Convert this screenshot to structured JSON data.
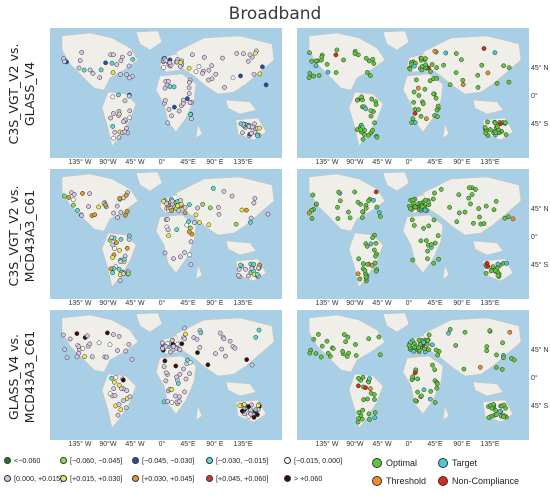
{
  "title": "Broadband",
  "row_labels": [
    {
      "line1": "C3S_VGT_V2 vs.",
      "line2": "GLASS_V4"
    },
    {
      "line1": "C3S_VGT_V2 vs.",
      "line2": "MCD43A3_C61"
    },
    {
      "line1": "GLASS_V4 vs.",
      "line2": "MCD43A3_C61"
    }
  ],
  "lon_labels": [
    "135° W",
    "90°W",
    "45° W",
    "0°",
    "45°E",
    "90° E",
    "135°E"
  ],
  "lat_labels": [
    "45° N",
    "0°",
    "45° S"
  ],
  "colors": {
    "ocean": "#a9cfe6",
    "land": "#efeee9",
    "land_edge": "#c9c5bb"
  },
  "legend_bias": [
    {
      "label": "<−0.060",
      "color": "#1e7d22"
    },
    {
      "label": "[−0.060, −0.045]",
      "color": "#8fe04c"
    },
    {
      "label": "[−0.045, −0.030]",
      "color": "#1f4fb8"
    },
    {
      "label": "[−0.030, −0.015]",
      "color": "#52e0d2"
    },
    {
      "label": "[−0.015, 0.000]",
      "color": "#ffffff"
    },
    {
      "label": "[0.000, +0.015]",
      "color": "#d8c8e8"
    },
    {
      "label": "[+0.015, +0.030]",
      "color": "#ece84a"
    },
    {
      "label": "[+0.030, +0.045]",
      "color": "#e09a2a"
    },
    {
      "label": "[+0.045, +0.060]",
      "color": "#d23a2a"
    },
    {
      "label": "> +0.060",
      "color": "#3a0c0c"
    }
  ],
  "legend_compliance": [
    {
      "label": "Optimal",
      "color": "#5ec83a"
    },
    {
      "label": "Target",
      "color": "#4ec8d8"
    },
    {
      "label": "Threshold",
      "color": "#f08a2a"
    },
    {
      "label": "Non-Compliance",
      "color": "#d42a22"
    }
  ]
}
